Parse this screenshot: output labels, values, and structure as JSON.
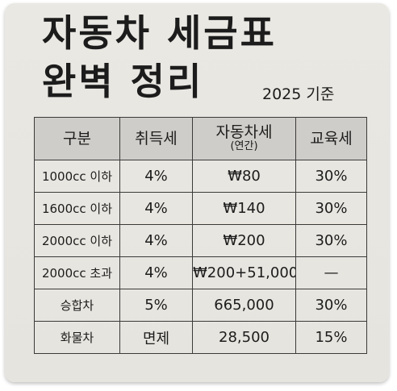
{
  "title": {
    "line1": "자동차 세금표",
    "line2": "완벽 정리"
  },
  "subtitle": "2025 기준",
  "table": {
    "headers": [
      {
        "main": "구분",
        "sub": ""
      },
      {
        "main": "취득세",
        "sub": ""
      },
      {
        "main": "자동차세",
        "sub": "(연간)"
      },
      {
        "main": "교육세",
        "sub": ""
      }
    ],
    "rows": [
      [
        "1000cc 이하",
        "4%",
        "₩80",
        "30%"
      ],
      [
        "1600cc 이하",
        "4%",
        "₩140",
        "30%"
      ],
      [
        "2000cc 이하",
        "4%",
        "₩200",
        "30%"
      ],
      [
        "2000cc 초과",
        "4%",
        "₩200+51,000",
        "—"
      ],
      [
        "승합차",
        "5%",
        "665,000",
        "30%"
      ],
      [
        "화물차",
        "면제",
        "28,500",
        "15%"
      ]
    ]
  }
}
